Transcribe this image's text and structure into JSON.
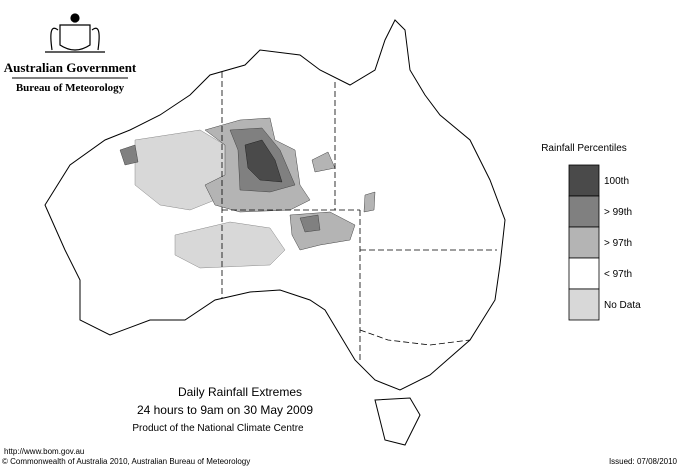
{
  "header": {
    "title": "Australian Government",
    "subtitle": "Bureau of Meteorology"
  },
  "legend": {
    "title": "Rainfall Percentiles",
    "items": [
      {
        "label": "100th",
        "color": "#4a4a4a"
      },
      {
        "label": "> 99th",
        "color": "#808080"
      },
      {
        "label": "> 97th",
        "color": "#b4b4b4"
      },
      {
        "label": "< 97th",
        "color": "#ffffff"
      },
      {
        "label": "No Data",
        "color": "#d8d8d8"
      }
    ]
  },
  "caption": {
    "title": "Daily Rainfall Extremes",
    "period": "24 hours to 9am on 30 May 2009",
    "product": "Product of the National Climate Centre"
  },
  "footer": {
    "url": "http://www.bom.gov.au",
    "copyright": "© Commonwealth of Australia 2010, Australian Bureau of Meteorology",
    "issued": "Issued: 07/08/2010"
  }
}
